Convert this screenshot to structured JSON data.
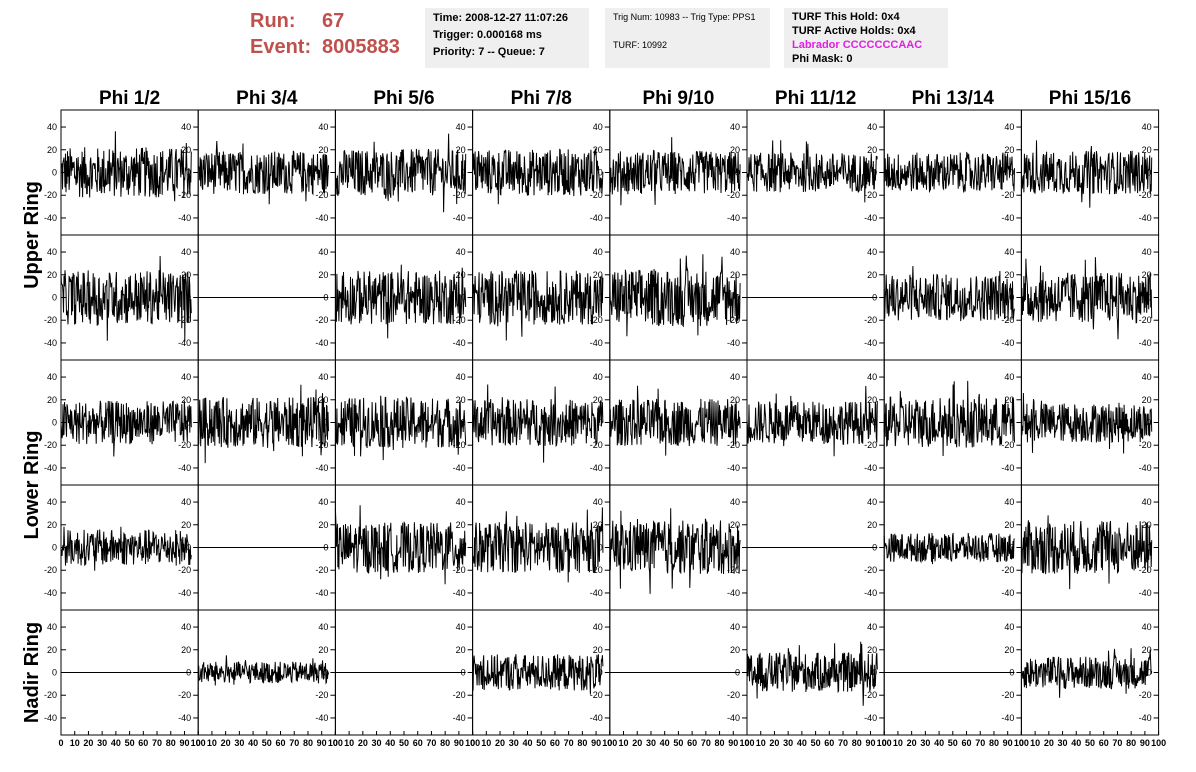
{
  "header": {
    "run_label": "Run:",
    "run_value": "67",
    "event_label": "Event:",
    "event_value": "8005883",
    "time": "Time: 2008-12-27 11:07:26",
    "trigger": "Trigger: 0.000168 ms",
    "priority": "Priority: 7 -- Queue: 7",
    "trig_num": "Trig Num: 10983 -- Trig Type: PPS1",
    "turf": "TURF: 10992",
    "turf_this_hold": "TURF This Hold: 0x4",
    "turf_active_holds": "TURF Active Holds: 0x4",
    "labrador": "Labrador CCCCCCCAAC",
    "phi_mask": "Phi Mask: 0",
    "labrador_color": "#e020e0",
    "run_color": "#c0504d"
  },
  "chart_data": {
    "type": "line",
    "columns": [
      "Phi 1/2",
      "Phi 3/4",
      "Phi 5/6",
      "Phi 7/8",
      "Phi 9/10",
      "Phi 11/12",
      "Phi 13/14",
      "Phi 15/16"
    ],
    "rows": [
      "Upper Ring",
      "Lower Ring",
      "Nadir Ring"
    ],
    "row_label_span": [
      2,
      2,
      1
    ],
    "ylim": [
      -55,
      55
    ],
    "yticks": [
      -40,
      -20,
      0,
      20,
      40
    ],
    "xlim": [
      0,
      100
    ],
    "xticks": [
      0,
      10,
      20,
      30,
      40,
      50,
      60,
      70,
      80,
      90,
      100
    ],
    "xtick_labels": [
      "0",
      "10",
      "20",
      "30",
      "40",
      "50",
      "60",
      "70",
      "80",
      "90",
      "100"
    ],
    "ytick_labels": [
      "-40",
      "-20",
      "0",
      "20",
      "40"
    ],
    "samples": 260,
    "x_end": 95,
    "grid": false,
    "panels_amplitude": [
      [
        14,
        12,
        13,
        13,
        12,
        11,
        11,
        12
      ],
      [
        15,
        0,
        15,
        15,
        16,
        0,
        13,
        14
      ],
      [
        12,
        14,
        14,
        13,
        13,
        12,
        14,
        11
      ],
      [
        10,
        0,
        14,
        14,
        15,
        0,
        8,
        15
      ],
      [
        0,
        6,
        0,
        10,
        0,
        11,
        0,
        9
      ]
    ],
    "line_color": "#000000"
  }
}
